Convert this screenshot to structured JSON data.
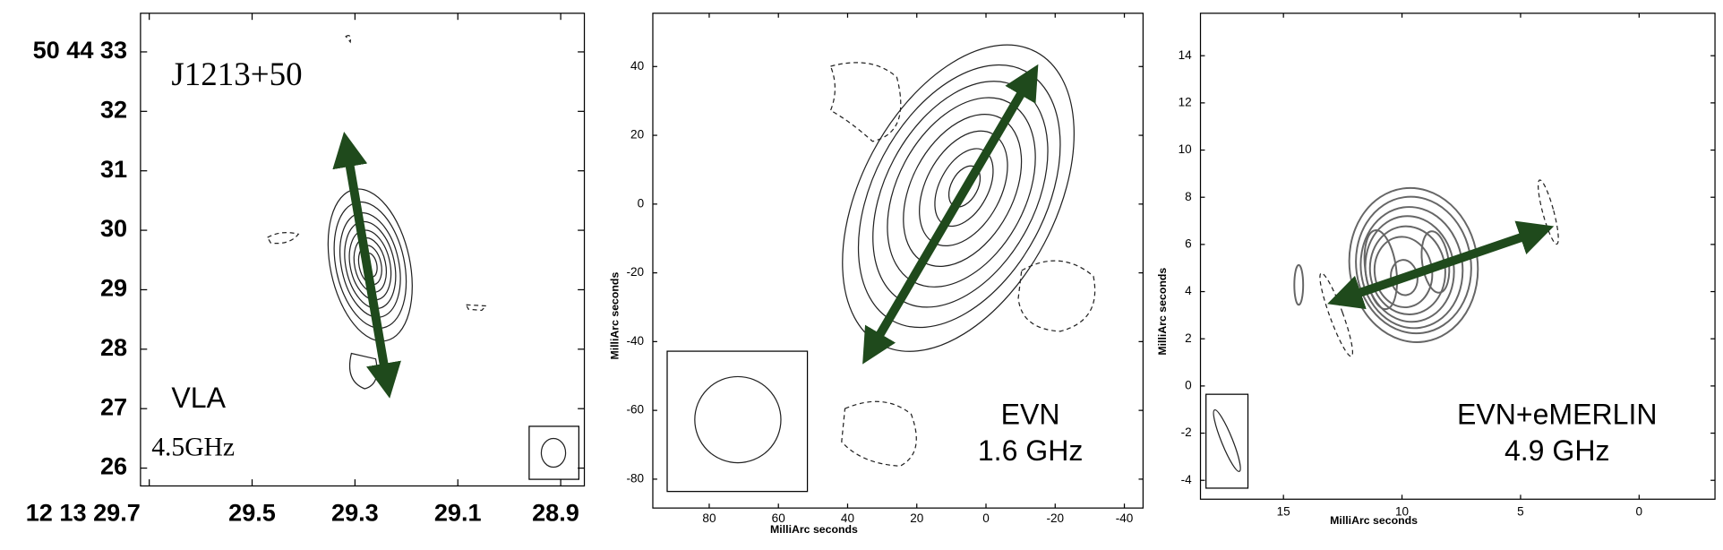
{
  "chart_data": [
    {
      "type": "contour",
      "annotations": [
        "J1213+50",
        "VLA",
        "4.5GHz"
      ],
      "xlim": [
        29.717,
        28.854
      ],
      "xticks": [
        {
          "value": 29.7,
          "label": "12 13 29.7"
        },
        29.5,
        29.3,
        29.1,
        28.9
      ],
      "ylim": [
        25.7,
        33.65
      ],
      "yticks": [
        {
          "value": 33,
          "label": "50 44 33"
        },
        32,
        31,
        30,
        29,
        28,
        27,
        26
      ]
    },
    {
      "type": "contour",
      "xlabel": "MilliArc seconds",
      "ylabel": "MilliArc seconds",
      "annotations": [
        "EVN",
        "1.6 GHz"
      ],
      "xlim": [
        96.3,
        -45.4
      ],
      "xticks": [
        80,
        60,
        40,
        20,
        0,
        -20,
        -40
      ],
      "ylim": [
        -88.4,
        55.5
      ],
      "yticks": [
        40,
        20,
        0,
        -20,
        -40,
        -60,
        -80
      ]
    },
    {
      "type": "contour",
      "xlabel": "MilliArc seconds",
      "ylabel": "MilliArc seconds",
      "annotations": [
        "EVN+eMERLIN",
        "4.9 GHz"
      ],
      "xlim": [
        18.5,
        -3.2
      ],
      "xticks": [
        15,
        10,
        5,
        0
      ],
      "ylim": [
        -4.8,
        15.8
      ],
      "yticks": [
        14,
        12,
        10,
        8,
        6,
        4,
        2,
        0,
        -2,
        -4
      ]
    }
  ]
}
